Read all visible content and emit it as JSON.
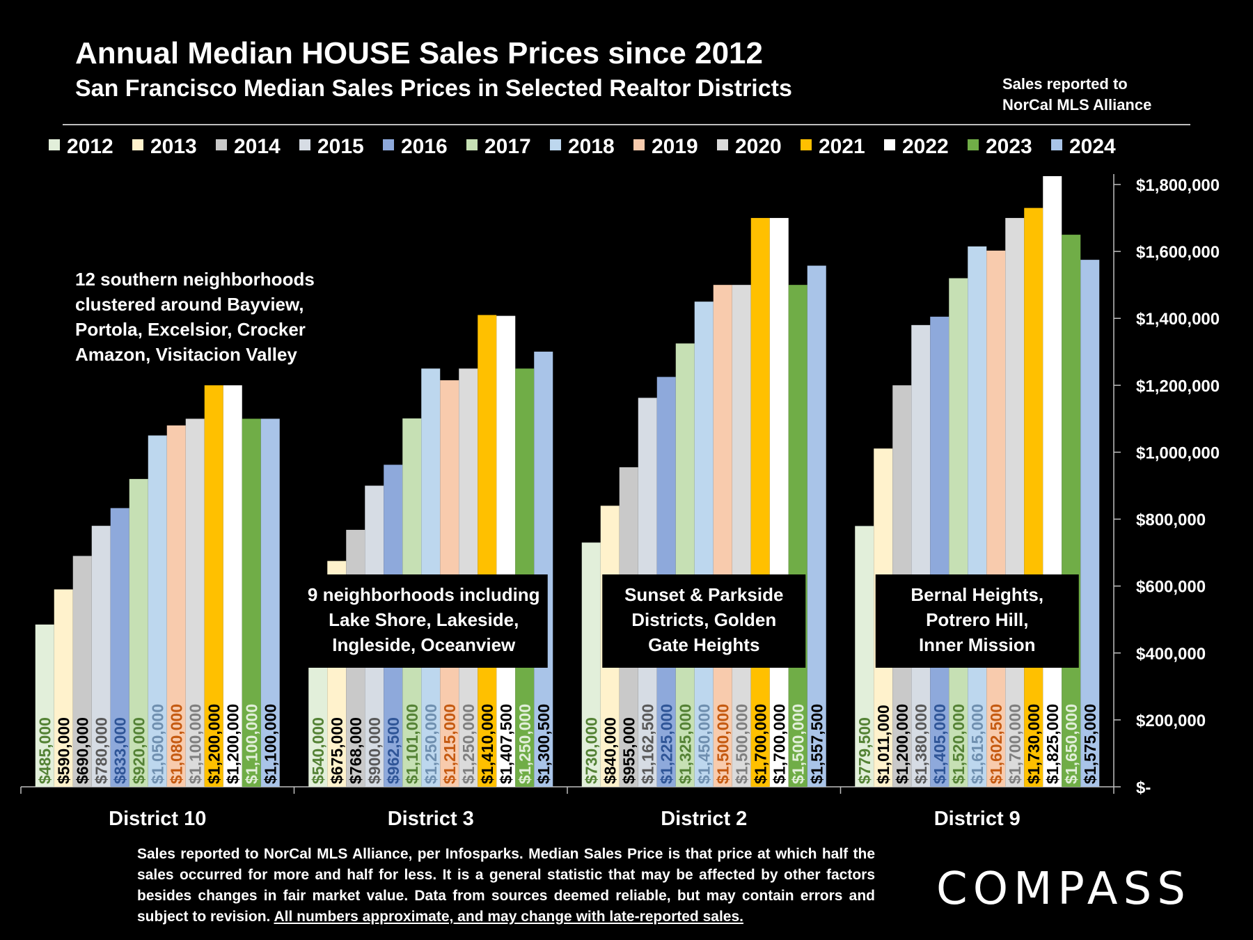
{
  "title": "Annual Median HOUSE Sales Prices since 2012",
  "subtitle": "San Francisco Median Sales Prices in Selected Realtor Districts",
  "source_note": [
    "Sales reported to",
    "NorCal MLS Alliance"
  ],
  "footnote": {
    "text": "Sales reported to NorCal MLS Alliance, per Infosparks. Median Sales Price is that price at which half the sales occurred for more and half for less. It is a general statistic that may be affected by other factors besides changes in fair market value. Data from sources deemed reliable, but may contain errors and subject to revision.",
    "underlined": "All numbers approximate, and may change with late-reported sales."
  },
  "logo": "COMPASS",
  "chart_data": {
    "type": "bar",
    "title": "Annual Median HOUSE Sales Prices since 2012",
    "categories": [
      "District 10",
      "District 3",
      "District 2",
      "District 9"
    ],
    "ylim": [
      0,
      1800000
    ],
    "yticks": [
      0,
      200000,
      400000,
      600000,
      800000,
      1000000,
      1200000,
      1400000,
      1600000,
      1800000
    ],
    "ytick_labels": [
      "$-",
      "$200,000",
      "$400,000",
      "$600,000",
      "$800,000",
      "$1,000,000",
      "$1,200,000",
      "$1,400,000",
      "$1,600,000",
      "$1,800,000"
    ],
    "y_axis_position": "right",
    "legend_position": "top",
    "series": [
      {
        "name": "2012",
        "color": "#E2EFDA",
        "label_color": "#548235",
        "values": [
          485000,
          540000,
          730000,
          779500
        ],
        "labels": [
          "$485,000",
          "$540,000",
          "$730,000",
          "$779,500"
        ]
      },
      {
        "name": "2013",
        "color": "#FFF2CC",
        "label_color": "#000000",
        "values": [
          590000,
          675000,
          840000,
          1011000
        ],
        "labels": [
          "$590,000",
          "$675,000",
          "$840,000",
          "$1,011,000"
        ]
      },
      {
        "name": "2014",
        "color": "#C9C9C9",
        "label_color": "#000000",
        "values": [
          690000,
          768000,
          955000,
          1200000
        ],
        "labels": [
          "$690,000",
          "$768,000",
          "$955,000",
          "$1,200,000"
        ]
      },
      {
        "name": "2015",
        "color": "#D6DCE4",
        "label_color": "#595959",
        "values": [
          780000,
          900000,
          1162500,
          1380000
        ],
        "labels": [
          "$780,000",
          "$900,000",
          "$1,162,500",
          "$1,380,000"
        ]
      },
      {
        "name": "2016",
        "color": "#8EA9DB",
        "label_color": "#2F5597",
        "values": [
          833000,
          962500,
          1225000,
          1405000
        ],
        "labels": [
          "$833,000",
          "$962,500",
          "$1,225,000",
          "$1,405,000"
        ]
      },
      {
        "name": "2017",
        "color": "#C6E0B4",
        "label_color": "#548235",
        "values": [
          920000,
          1101000,
          1325000,
          1520000
        ],
        "labels": [
          "$920,000",
          "$1,101,000",
          "$1,325,000",
          "$1,520,000"
        ]
      },
      {
        "name": "2018",
        "color": "#BDD7EE",
        "label_color": "#6F8FAF",
        "values": [
          1050000,
          1250000,
          1450000,
          1615000
        ],
        "labels": [
          "$1,050,000",
          "$1,250,000",
          "$1,450,000",
          "$1,615,000"
        ]
      },
      {
        "name": "2019",
        "color": "#F8CBAD",
        "label_color": "#C55A11",
        "values": [
          1080000,
          1215000,
          1500000,
          1602500
        ],
        "labels": [
          "$1,080,000",
          "$1,215,000",
          "$1,500,000",
          "$1,602,500"
        ]
      },
      {
        "name": "2020",
        "color": "#DBDBDB",
        "label_color": "#7F7F7F",
        "values": [
          1100000,
          1250000,
          1500000,
          1700000
        ],
        "labels": [
          "$1,100,000",
          "$1,250,000",
          "$1,500,000",
          "$1,700,000"
        ]
      },
      {
        "name": "2021",
        "color": "#FFC000",
        "label_color": "#000000",
        "values": [
          1200000,
          1410000,
          1700000,
          1730000
        ],
        "labels": [
          "$1,200,000",
          "$1,410,000",
          "$1,700,000",
          "$1,730,000"
        ]
      },
      {
        "name": "2022",
        "color": "#FFFFFF",
        "label_color": "#000000",
        "values": [
          1200000,
          1407500,
          1700000,
          1825000
        ],
        "labels": [
          "$1,200,000",
          "$1,407,500",
          "$1,700,000",
          "$1,825,000"
        ]
      },
      {
        "name": "2023",
        "color": "#70AD47",
        "label_color": "#E2EFDA",
        "values": [
          1100000,
          1250000,
          1500000,
          1650000
        ],
        "labels": [
          "$1,100,000",
          "$1,250,000",
          "$1,500,000",
          "$1,650,000"
        ]
      },
      {
        "name": "2024",
        "color": "#A9C4E8",
        "label_color": "#000000",
        "values": [
          1100000,
          1300500,
          1557500,
          1575000
        ],
        "labels": [
          "$1,100,000",
          "$1,300,500",
          "$1,557,500",
          "$1,575,000"
        ]
      }
    ],
    "annotations": [
      {
        "group": "District 10",
        "style": "plain",
        "lines": [
          "12 southern neighborhoods",
          "clustered around Bayview,",
          "Portola, Excelsior, Crocker",
          "Amazon, Visitacion Valley"
        ]
      },
      {
        "group": "District 3",
        "style": "boxed",
        "lines": [
          "9 neighborhoods including",
          "Lake Shore, Lakeside,",
          "Ingleside, Oceanview"
        ]
      },
      {
        "group": "District 2",
        "style": "boxed",
        "lines": [
          "Sunset & Parkside",
          "Districts, Golden",
          "Gate Heights"
        ]
      },
      {
        "group": "District 9",
        "style": "boxed",
        "lines": [
          "Bernal Heights,",
          "Potrero Hill,",
          "Inner Mission"
        ]
      }
    ]
  }
}
